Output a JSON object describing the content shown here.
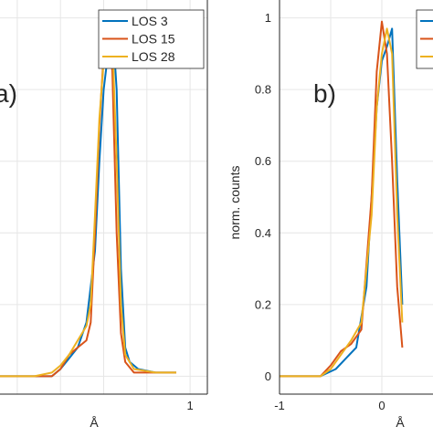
{
  "chart_data": [
    {
      "type": "line",
      "panel_label": "a)",
      "xlabel": "Å",
      "ylabel": "",
      "xlim": [
        -1.2,
        1.2
      ],
      "ylim": [
        -0.05,
        1.05
      ],
      "x_ticks": [
        "1"
      ],
      "y_ticks": [],
      "grid": true,
      "legend_position": "top-right",
      "series": [
        {
          "name": "LOS 3",
          "color": "#0072BD",
          "points": [
            [
              -1.2,
              0
            ],
            [
              -0.8,
              0
            ],
            [
              -0.6,
              0
            ],
            [
              -0.5,
              0.02
            ],
            [
              -0.4,
              0.05
            ],
            [
              -0.3,
              0.08
            ],
            [
              -0.2,
              0.15
            ],
            [
              -0.1,
              0.35
            ],
            [
              -0.05,
              0.6
            ],
            [
              0,
              0.8
            ],
            [
              0.05,
              0.9
            ],
            [
              0.1,
              0.99
            ],
            [
              0.15,
              0.8
            ],
            [
              0.2,
              0.3
            ],
            [
              0.25,
              0.08
            ],
            [
              0.3,
              0.04
            ],
            [
              0.4,
              0.02
            ],
            [
              0.6,
              0.01
            ],
            [
              0.84,
              0.01
            ]
          ]
        },
        {
          "name": "LOS 15",
          "color": "#D95319",
          "points": [
            [
              -1.2,
              0
            ],
            [
              -0.8,
              0
            ],
            [
              -0.6,
              0
            ],
            [
              -0.5,
              0.02
            ],
            [
              -0.4,
              0.06
            ],
            [
              -0.3,
              0.08
            ],
            [
              -0.2,
              0.1
            ],
            [
              -0.15,
              0.15
            ],
            [
              -0.1,
              0.4
            ],
            [
              -0.05,
              0.7
            ],
            [
              0,
              0.9
            ],
            [
              0.05,
              0.99
            ],
            [
              0.1,
              0.85
            ],
            [
              0.15,
              0.4
            ],
            [
              0.2,
              0.12
            ],
            [
              0.25,
              0.04
            ],
            [
              0.35,
              0.01
            ],
            [
              0.6,
              0.01
            ],
            [
              0.84,
              0.01
            ]
          ]
        },
        {
          "name": "LOS 28",
          "color": "#EDB120",
          "points": [
            [
              -1.2,
              0
            ],
            [
              -0.8,
              0
            ],
            [
              -0.6,
              0.01
            ],
            [
              -0.5,
              0.03
            ],
            [
              -0.4,
              0.06
            ],
            [
              -0.3,
              0.1
            ],
            [
              -0.2,
              0.14
            ],
            [
              -0.15,
              0.2
            ],
            [
              -0.1,
              0.45
            ],
            [
              -0.05,
              0.72
            ],
            [
              0,
              0.88
            ],
            [
              0.05,
              0.96
            ],
            [
              0.1,
              0.94
            ],
            [
              0.15,
              0.6
            ],
            [
              0.2,
              0.2
            ],
            [
              0.25,
              0.06
            ],
            [
              0.35,
              0.02
            ],
            [
              0.6,
              0.01
            ],
            [
              0.84,
              0.01
            ]
          ]
        }
      ]
    },
    {
      "type": "line",
      "panel_label": "b)",
      "xlabel": "Å",
      "ylabel": "norm. counts",
      "xlim": [
        -1,
        0.5
      ],
      "ylim": [
        -0.05,
        1.05
      ],
      "x_ticks": [
        "-1",
        "0"
      ],
      "y_ticks": [
        "0",
        "0.2",
        "0.4",
        "0.6",
        "0.8",
        "1"
      ],
      "grid": true,
      "legend_position": "top-right",
      "series": [
        {
          "color": "#0072BD",
          "points": [
            [
              -1,
              0
            ],
            [
              -0.6,
              0
            ],
            [
              -0.45,
              0.02
            ],
            [
              -0.35,
              0.05
            ],
            [
              -0.25,
              0.08
            ],
            [
              -0.15,
              0.25
            ],
            [
              -0.05,
              0.75
            ],
            [
              0,
              0.88
            ],
            [
              0.05,
              0.92
            ],
            [
              0.1,
              0.97
            ],
            [
              0.15,
              0.55
            ],
            [
              0.2,
              0.2
            ]
          ]
        },
        {
          "color": "#D95319",
          "points": [
            [
              -1,
              0
            ],
            [
              -0.6,
              0
            ],
            [
              -0.5,
              0.03
            ],
            [
              -0.4,
              0.07
            ],
            [
              -0.3,
              0.09
            ],
            [
              -0.2,
              0.13
            ],
            [
              -0.1,
              0.5
            ],
            [
              -0.05,
              0.85
            ],
            [
              0,
              0.99
            ],
            [
              0.05,
              0.9
            ],
            [
              0.1,
              0.6
            ],
            [
              0.15,
              0.25
            ],
            [
              0.2,
              0.08
            ]
          ]
        },
        {
          "color": "#EDB120",
          "points": [
            [
              -1,
              0
            ],
            [
              -0.6,
              0
            ],
            [
              -0.5,
              0.02
            ],
            [
              -0.4,
              0.06
            ],
            [
              -0.3,
              0.1
            ],
            [
              -0.2,
              0.15
            ],
            [
              -0.1,
              0.45
            ],
            [
              -0.05,
              0.75
            ],
            [
              0,
              0.9
            ],
            [
              0.05,
              0.97
            ],
            [
              0.1,
              0.9
            ],
            [
              0.15,
              0.45
            ],
            [
              0.2,
              0.15
            ]
          ]
        }
      ]
    }
  ]
}
